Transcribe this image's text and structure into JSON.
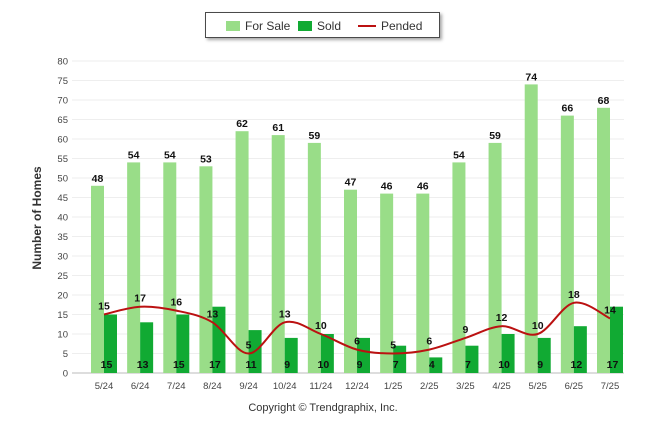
{
  "chart_data": {
    "type": "bar",
    "categories": [
      "5/24",
      "6/24",
      "7/24",
      "8/24",
      "9/24",
      "10/24",
      "11/24",
      "12/24",
      "1/25",
      "2/25",
      "3/25",
      "4/25",
      "5/25",
      "6/25",
      "7/25"
    ],
    "series": [
      {
        "name": "For Sale",
        "type": "bar",
        "color": "#99dd88",
        "values": [
          48,
          54,
          54,
          53,
          62,
          61,
          59,
          47,
          46,
          46,
          54,
          59,
          74,
          66,
          68
        ]
      },
      {
        "name": "Sold",
        "type": "bar",
        "color": "#11aa33",
        "values": [
          15,
          13,
          15,
          17,
          11,
          9,
          10,
          9,
          7,
          4,
          7,
          10,
          9,
          12,
          17
        ]
      },
      {
        "name": "Pended",
        "type": "line",
        "color": "#bb1111",
        "values": [
          15,
          17,
          16,
          13,
          5,
          13,
          10,
          6,
          5,
          6,
          9,
          12,
          10,
          18,
          14
        ]
      }
    ],
    "ylabel": "Number of Homes",
    "ylim": [
      0,
      80
    ],
    "yticks": [
      0,
      5,
      10,
      15,
      20,
      25,
      30,
      35,
      40,
      45,
      50,
      55,
      60,
      65,
      70,
      75,
      80
    ],
    "grid": true,
    "legend": "top"
  },
  "copyright": "Copyright © Trendgraphix, Inc."
}
